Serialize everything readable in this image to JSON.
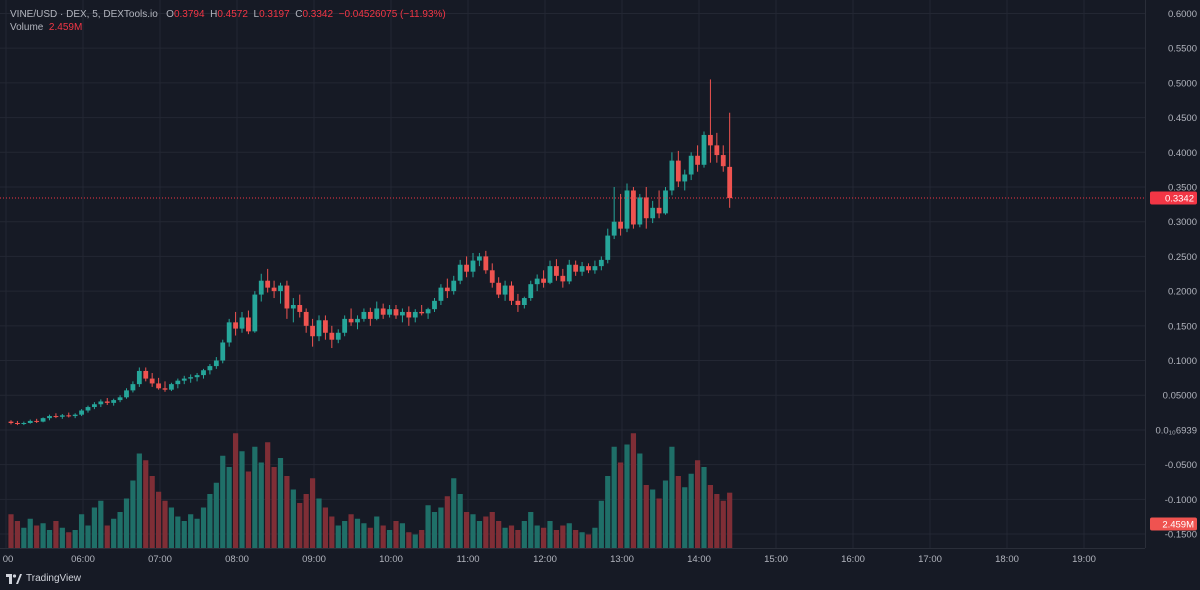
{
  "header": {
    "symbol_line": "VINE/USD · DEX, 5, DEXTools.io",
    "o_label": "O",
    "o_value": "0.3794",
    "h_label": "H",
    "h_value": "0.4572",
    "l_label": "L",
    "l_value": "0.3197",
    "c_label": "C",
    "c_value": "0.3342",
    "change": "−0.04526075 (−11.93%)",
    "volume_label": "Volume",
    "volume_value": "2.459M"
  },
  "footer": {
    "brand": "TradingView"
  },
  "colors": {
    "up": "#26a69a",
    "down": "#ef5350",
    "volume_up": "#1f6f68",
    "volume_down": "#7f2e36",
    "background": "#161a25",
    "grid": "#232733",
    "last_price": "#f23645"
  },
  "chart_data": {
    "type": "candlestick",
    "title": "VINE/USD · DEX, 5, DEXTools.io",
    "price_ticks": [
      "0.6000",
      "0.5500",
      "0.5000",
      "0.4500",
      "0.4000",
      "0.3500",
      "0.3000",
      "0.2500",
      "0.2000",
      "0.1500",
      "0.1000",
      "0.05000",
      "0.0₁₀6939",
      "-0.0500",
      "-0.1000",
      "-0.1500"
    ],
    "price_range": [
      -0.16,
      0.605
    ],
    "time_ticks": [
      "00",
      "06:00",
      "07:00",
      "08:00",
      "09:00",
      "10:00",
      "11:00",
      "12:00",
      "13:00",
      "14:00",
      "15:00",
      "16:00",
      "17:00",
      "18:00",
      "19:00"
    ],
    "time_start_hours": 5.25,
    "interval_minutes": 5,
    "last_price": 0.3342,
    "last_price_label": "0.3342",
    "volume_label": "2.459M",
    "volume_max": 6.0,
    "candles": [
      [
        0.012,
        0.014,
        0.008,
        0.01,
        1.5
      ],
      [
        0.01,
        0.013,
        0.007,
        0.009,
        1.2
      ],
      [
        0.009,
        0.012,
        0.007,
        0.01,
        0.9
      ],
      [
        0.01,
        0.015,
        0.009,
        0.013,
        1.3
      ],
      [
        0.013,
        0.016,
        0.01,
        0.012,
        1.0
      ],
      [
        0.012,
        0.018,
        0.011,
        0.017,
        1.1
      ],
      [
        0.017,
        0.022,
        0.014,
        0.02,
        0.8
      ],
      [
        0.02,
        0.024,
        0.017,
        0.019,
        1.2
      ],
      [
        0.019,
        0.023,
        0.016,
        0.021,
        0.9
      ],
      [
        0.021,
        0.025,
        0.018,
        0.02,
        0.7
      ],
      [
        0.02,
        0.024,
        0.017,
        0.022,
        0.8
      ],
      [
        0.022,
        0.03,
        0.02,
        0.028,
        1.5
      ],
      [
        0.028,
        0.035,
        0.025,
        0.033,
        1.0
      ],
      [
        0.033,
        0.04,
        0.03,
        0.037,
        1.8
      ],
      [
        0.037,
        0.044,
        0.033,
        0.041,
        2.1
      ],
      [
        0.041,
        0.046,
        0.036,
        0.039,
        1.0
      ],
      [
        0.039,
        0.045,
        0.035,
        0.043,
        1.3
      ],
      [
        0.043,
        0.05,
        0.04,
        0.047,
        1.6
      ],
      [
        0.047,
        0.06,
        0.045,
        0.057,
        2.2
      ],
      [
        0.057,
        0.07,
        0.054,
        0.066,
        3.0
      ],
      [
        0.066,
        0.09,
        0.062,
        0.085,
        4.2
      ],
      [
        0.085,
        0.09,
        0.07,
        0.074,
        3.9
      ],
      [
        0.074,
        0.082,
        0.062,
        0.067,
        3.2
      ],
      [
        0.067,
        0.075,
        0.058,
        0.06,
        2.5
      ],
      [
        0.06,
        0.07,
        0.055,
        0.058,
        2.1
      ],
      [
        0.058,
        0.068,
        0.056,
        0.066,
        1.8
      ],
      [
        0.066,
        0.074,
        0.06,
        0.071,
        1.4
      ],
      [
        0.071,
        0.078,
        0.066,
        0.074,
        1.2
      ],
      [
        0.074,
        0.08,
        0.068,
        0.076,
        1.5
      ],
      [
        0.076,
        0.082,
        0.07,
        0.079,
        1.3
      ],
      [
        0.079,
        0.088,
        0.074,
        0.086,
        1.8
      ],
      [
        0.086,
        0.095,
        0.08,
        0.092,
        2.4
      ],
      [
        0.092,
        0.105,
        0.088,
        0.1,
        2.9
      ],
      [
        0.1,
        0.13,
        0.096,
        0.126,
        4.1
      ],
      [
        0.126,
        0.16,
        0.12,
        0.155,
        3.6
      ],
      [
        0.155,
        0.17,
        0.136,
        0.146,
        5.1
      ],
      [
        0.146,
        0.17,
        0.14,
        0.162,
        4.3
      ],
      [
        0.162,
        0.172,
        0.138,
        0.142,
        3.4
      ],
      [
        0.142,
        0.2,
        0.14,
        0.195,
        4.5
      ],
      [
        0.195,
        0.225,
        0.185,
        0.215,
        3.8
      ],
      [
        0.215,
        0.232,
        0.198,
        0.205,
        4.7
      ],
      [
        0.205,
        0.215,
        0.19,
        0.2,
        3.6
      ],
      [
        0.2,
        0.212,
        0.182,
        0.208,
        4.0
      ],
      [
        0.208,
        0.215,
        0.16,
        0.175,
        3.2
      ],
      [
        0.175,
        0.19,
        0.155,
        0.18,
        2.6
      ],
      [
        0.18,
        0.195,
        0.162,
        0.17,
        2.0
      ],
      [
        0.17,
        0.175,
        0.14,
        0.15,
        2.4
      ],
      [
        0.15,
        0.16,
        0.12,
        0.135,
        3.1
      ],
      [
        0.135,
        0.165,
        0.128,
        0.158,
        2.2
      ],
      [
        0.158,
        0.165,
        0.13,
        0.14,
        1.8
      ],
      [
        0.14,
        0.15,
        0.118,
        0.13,
        1.4
      ],
      [
        0.13,
        0.145,
        0.125,
        0.14,
        1.0
      ],
      [
        0.14,
        0.165,
        0.135,
        0.16,
        1.2
      ],
      [
        0.16,
        0.175,
        0.15,
        0.155,
        1.5
      ],
      [
        0.155,
        0.165,
        0.145,
        0.16,
        1.3
      ],
      [
        0.16,
        0.175,
        0.156,
        0.17,
        1.1
      ],
      [
        0.17,
        0.176,
        0.15,
        0.16,
        0.9
      ],
      [
        0.16,
        0.185,
        0.158,
        0.175,
        1.4
      ],
      [
        0.175,
        0.182,
        0.16,
        0.166,
        1.0
      ],
      [
        0.166,
        0.18,
        0.162,
        0.174,
        0.8
      ],
      [
        0.174,
        0.18,
        0.16,
        0.165,
        1.2
      ],
      [
        0.165,
        0.175,
        0.155,
        0.17,
        1.1
      ],
      [
        0.17,
        0.178,
        0.15,
        0.162,
        0.7
      ],
      [
        0.162,
        0.174,
        0.155,
        0.17,
        0.6
      ],
      [
        0.17,
        0.18,
        0.165,
        0.168,
        0.8
      ],
      [
        0.168,
        0.176,
        0.16,
        0.174,
        1.9
      ],
      [
        0.174,
        0.19,
        0.17,
        0.186,
        1.6
      ],
      [
        0.186,
        0.21,
        0.18,
        0.205,
        1.8
      ],
      [
        0.205,
        0.218,
        0.19,
        0.2,
        2.3
      ],
      [
        0.2,
        0.222,
        0.195,
        0.215,
        3.1
      ],
      [
        0.215,
        0.245,
        0.21,
        0.238,
        2.4
      ],
      [
        0.238,
        0.25,
        0.22,
        0.228,
        1.6
      ],
      [
        0.228,
        0.255,
        0.22,
        0.244,
        1.5
      ],
      [
        0.244,
        0.255,
        0.236,
        0.25,
        1.2
      ],
      [
        0.25,
        0.258,
        0.225,
        0.23,
        1.4
      ],
      [
        0.23,
        0.24,
        0.205,
        0.212,
        1.6
      ],
      [
        0.212,
        0.22,
        0.19,
        0.195,
        1.2
      ],
      [
        0.195,
        0.215,
        0.186,
        0.208,
        0.9
      ],
      [
        0.208,
        0.214,
        0.18,
        0.186,
        1.0
      ],
      [
        0.186,
        0.196,
        0.17,
        0.18,
        0.8
      ],
      [
        0.18,
        0.192,
        0.175,
        0.19,
        1.2
      ],
      [
        0.19,
        0.215,
        0.186,
        0.21,
        1.6
      ],
      [
        0.21,
        0.224,
        0.2,
        0.218,
        1.0
      ],
      [
        0.218,
        0.23,
        0.205,
        0.212,
        0.9
      ],
      [
        0.212,
        0.244,
        0.21,
        0.236,
        1.2
      ],
      [
        0.236,
        0.246,
        0.215,
        0.222,
        0.8
      ],
      [
        0.222,
        0.232,
        0.205,
        0.214,
        1.0
      ],
      [
        0.214,
        0.245,
        0.21,
        0.238,
        1.1
      ],
      [
        0.238,
        0.244,
        0.222,
        0.228,
        0.8
      ],
      [
        0.228,
        0.242,
        0.222,
        0.236,
        0.7
      ],
      [
        0.236,
        0.24,
        0.226,
        0.23,
        0.6
      ],
      [
        0.23,
        0.244,
        0.225,
        0.236,
        0.9
      ],
      [
        0.236,
        0.25,
        0.23,
        0.245,
        2.1
      ],
      [
        0.245,
        0.29,
        0.24,
        0.28,
        3.2
      ],
      [
        0.28,
        0.35,
        0.275,
        0.3,
        4.5
      ],
      [
        0.3,
        0.34,
        0.28,
        0.29,
        3.8
      ],
      [
        0.29,
        0.355,
        0.285,
        0.345,
        4.6
      ],
      [
        0.345,
        0.35,
        0.29,
        0.296,
        5.1
      ],
      [
        0.296,
        0.34,
        0.292,
        0.335,
        4.2
      ],
      [
        0.335,
        0.35,
        0.29,
        0.305,
        2.8
      ],
      [
        0.305,
        0.33,
        0.298,
        0.32,
        2.6
      ],
      [
        0.32,
        0.345,
        0.305,
        0.312,
        2.2
      ],
      [
        0.312,
        0.35,
        0.31,
        0.345,
        3.0
      ],
      [
        0.345,
        0.4,
        0.338,
        0.388,
        4.5
      ],
      [
        0.388,
        0.402,
        0.35,
        0.358,
        3.2
      ],
      [
        0.358,
        0.375,
        0.345,
        0.368,
        2.7
      ],
      [
        0.368,
        0.4,
        0.36,
        0.395,
        3.3
      ],
      [
        0.395,
        0.41,
        0.372,
        0.382,
        3.9
      ],
      [
        0.382,
        0.43,
        0.378,
        0.425,
        3.6
      ],
      [
        0.425,
        0.505,
        0.385,
        0.41,
        2.8
      ],
      [
        0.41,
        0.428,
        0.385,
        0.396,
        2.4
      ],
      [
        0.396,
        0.41,
        0.372,
        0.38,
        2.1
      ],
      [
        0.379,
        0.457,
        0.32,
        0.334,
        2.459
      ]
    ]
  }
}
